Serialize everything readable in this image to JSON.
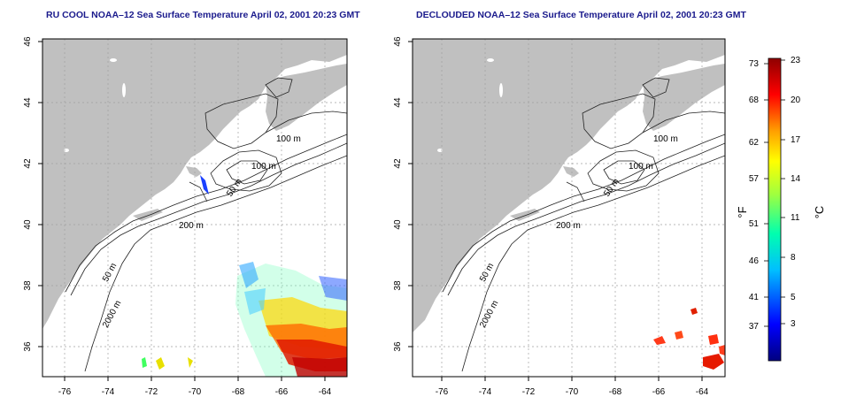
{
  "titles": {
    "left": "RU COOL NOAA–12 Sea Surface Temperature April 02, 2001 20:23 GMT",
    "right": "DECLOUDED NOAA–12 Sea Surface Temperature April 02, 2001 20:23 GMT"
  },
  "axes": {
    "lon_ticks": [
      "-76",
      "-74",
      "-72",
      "-70",
      "-68",
      "-66",
      "-64"
    ],
    "lat_ticks": [
      "36",
      "38",
      "40",
      "42",
      "44",
      "46"
    ],
    "lon_range": [
      -77,
      -63
    ],
    "lat_range": [
      35,
      46
    ]
  },
  "contour_labels": {
    "left": [
      "100 m",
      "100 m",
      "50 m",
      "200 m",
      "50 m",
      "2000 m"
    ],
    "right": [
      "100 m",
      "100 m",
      "50 m",
      "200 m",
      "50 m",
      "2000 m"
    ]
  },
  "colorbar": {
    "fahrenheit_labels": [
      "73",
      "68",
      "62",
      "57",
      "51",
      "46",
      "41",
      "37"
    ],
    "celsius_labels": [
      "23",
      "20",
      "17",
      "14",
      "11",
      "8",
      "5",
      "3"
    ],
    "unit_f": "°F",
    "unit_c": "°C",
    "range_c": [
      0,
      23
    ],
    "colors": [
      "#00007f",
      "#0000ff",
      "#007fff",
      "#00ffff",
      "#7fff7f",
      "#ffff00",
      "#ff7f00",
      "#ff0000",
      "#7f0000"
    ]
  },
  "colors": {
    "land": "#c0c0c0",
    "ocean": "#ffffff",
    "title": "#1a1a8c",
    "grid": "#a0a0a0"
  }
}
